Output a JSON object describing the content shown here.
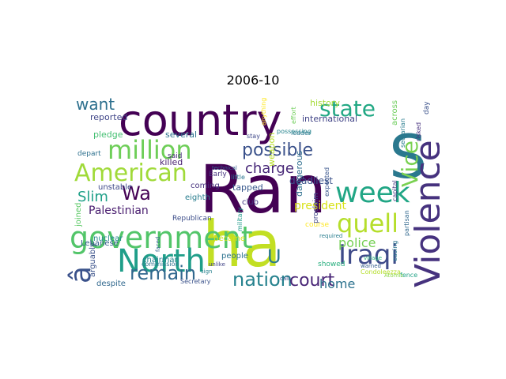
{
  "chart_data": {
    "type": "wordcloud",
    "title": "2006-10",
    "colormap": "viridis",
    "background": "#ffffff",
    "words": [
      {
        "text": "Ran",
        "color": "#440154"
      },
      {
        "text": "ha",
        "color": "#c2df23"
      },
      {
        "text": "country",
        "color": "#440154"
      },
      {
        "text": "S",
        "color": "#2a788e"
      },
      {
        "text": "government",
        "color": "#52c569"
      },
      {
        "text": "North",
        "color": "#1f9e89"
      },
      {
        "text": "American",
        "color": "#a0da39"
      },
      {
        "text": "Violence",
        "color": "#46327e"
      },
      {
        "text": "million",
        "color": "#6ece58"
      },
      {
        "text": "week",
        "color": "#21a685"
      },
      {
        "text": "Iraqi",
        "color": "#3e4a89"
      },
      {
        "text": "quell",
        "color": "#b5de2b"
      },
      {
        "text": "state",
        "color": "#22a884"
      },
      {
        "text": "Vice",
        "color": "#7ad151"
      },
      {
        "text": "â",
        "color": "#3b528b"
      },
      {
        "text": "remain",
        "color": "#31688e"
      },
      {
        "text": "nation",
        "color": "#26828e"
      },
      {
        "text": "court",
        "color": "#482576"
      },
      {
        "text": "possible",
        "color": "#3b528b"
      },
      {
        "text": "want",
        "color": "#2d708e"
      },
      {
        "text": "Wa",
        "color": "#440154"
      },
      {
        "text": "U",
        "color": "#2a788e"
      },
      {
        "text": "Slim",
        "color": "#1fa088"
      },
      {
        "text": "charge",
        "color": "#482878"
      },
      {
        "text": "police",
        "color": "#75d054"
      },
      {
        "text": "home",
        "color": "#2c728e"
      },
      {
        "text": "Palestinian",
        "color": "#481c6e"
      },
      {
        "text": "president",
        "color": "#d8e219"
      },
      {
        "text": "deadliest",
        "color": "#3b528b"
      },
      {
        "text": "dangerous",
        "color": "#2e6e8e"
      },
      {
        "text": "international",
        "color": "#414487"
      },
      {
        "text": "history",
        "color": "#a5db36"
      },
      {
        "text": "tapped",
        "color": "#38588c"
      },
      {
        "text": "weapon",
        "color": "#b8de29"
      },
      {
        "text": "reported",
        "color": "#404688"
      },
      {
        "text": "pledge",
        "color": "#43bf71"
      },
      {
        "text": "several",
        "color": "#2c728e"
      },
      {
        "text": "killed",
        "color": "#481f70"
      },
      {
        "text": "coming",
        "color": "#46327e"
      },
      {
        "text": "eighth",
        "color": "#287d8e"
      },
      {
        "text": "unstable",
        "color": "#3e4989"
      },
      {
        "text": "joined",
        "color": "#5ac864"
      },
      {
        "text": "Lebanese",
        "color": "#355f8d"
      },
      {
        "text": "nuclear",
        "color": "#23898e"
      },
      {
        "text": "chairman",
        "color": "#26828e"
      },
      {
        "text": "arguably",
        "color": "#3b528b"
      },
      {
        "text": "people",
        "color": "#2c728e"
      },
      {
        "text": "despite",
        "color": "#31688e"
      },
      {
        "text": "became",
        "color": "#d5e21a"
      },
      {
        "text": "club",
        "color": "#443a83"
      },
      {
        "text": "Republican",
        "color": "#3d4e8a"
      },
      {
        "text": "Secretary",
        "color": "#3b528b"
      },
      {
        "text": "commission",
        "color": "#2c728e"
      },
      {
        "text": "military",
        "color": "#1f9a8a"
      },
      {
        "text": "said",
        "color": "#472d7b"
      },
      {
        "text": "depart",
        "color": "#2d708e"
      },
      {
        "text": "Early",
        "color": "#46327e"
      },
      {
        "text": "proclaim",
        "color": "#404688"
      },
      {
        "text": "course",
        "color": "#fde725"
      },
      {
        "text": "showed",
        "color": "#29af7f"
      },
      {
        "text": "Condoleezza",
        "color": "#b5de2b"
      },
      {
        "text": "across",
        "color": "#6ccd5a"
      },
      {
        "text": "sectarian",
        "color": "#287c8e"
      },
      {
        "text": "capital",
        "color": "#46337f"
      },
      {
        "text": "partisan",
        "color": "#31688e"
      },
      {
        "text": "easing",
        "color": "#2a768e"
      },
      {
        "text": "fence",
        "color": "#20a386"
      },
      {
        "text": "Atomic",
        "color": "#8bd646"
      },
      {
        "text": "warned",
        "color": "#365d8d"
      },
      {
        "text": "village",
        "color": "#2fb47c"
      },
      {
        "text": "required",
        "color": "#287d8e"
      },
      {
        "text": "call",
        "color": "#3c4f8a"
      },
      {
        "text": "sign",
        "color": "#27808e"
      },
      {
        "text": "unlike",
        "color": "#414487"
      },
      {
        "text": "stay",
        "color": "#3f4889"
      },
      {
        "text": "little",
        "color": "#2b758e"
      },
      {
        "text": "day",
        "color": "#3b528b"
      },
      {
        "text": "risked",
        "color": "#46307e"
      },
      {
        "text": "effort",
        "color": "#6ece58"
      },
      {
        "text": "leader",
        "color": "#2a778e"
      },
      {
        "text": "anything",
        "color": "#fde725"
      },
      {
        "text": "expected",
        "color": "#39568c"
      },
      {
        "text": "faced",
        "color": "#32658e"
      },
      {
        "text": "possessing",
        "color": "#25848e"
      },
      {
        "text": "technical",
        "color": "#34618d"
      }
    ]
  }
}
